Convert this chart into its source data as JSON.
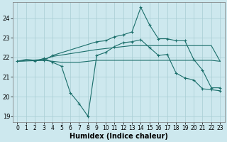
{
  "xlabel": "Humidex (Indice chaleur)",
  "background_color": "#cde8ee",
  "grid_color": "#a8cdd4",
  "line_color": "#1a6e6a",
  "xlim": [
    -0.5,
    23.5
  ],
  "ylim": [
    18.7,
    24.8
  ],
  "yticks": [
    19,
    20,
    21,
    22,
    23,
    24
  ],
  "xticks": [
    0,
    1,
    2,
    3,
    4,
    5,
    6,
    7,
    8,
    9,
    10,
    11,
    12,
    13,
    14,
    15,
    16,
    17,
    18,
    19,
    20,
    21,
    22,
    23
  ],
  "line1_x": [
    0,
    1,
    2,
    3,
    4,
    5,
    6,
    7,
    8,
    9,
    10,
    11,
    12,
    13,
    14,
    15,
    16,
    17,
    18,
    19,
    20,
    21,
    22,
    23
  ],
  "line1_y": [
    21.8,
    21.9,
    21.85,
    21.85,
    21.8,
    21.75,
    21.75,
    21.75,
    21.8,
    21.85,
    21.85,
    21.85,
    21.85,
    21.85,
    21.85,
    21.85,
    21.85,
    21.85,
    21.85,
    21.85,
    21.85,
    21.85,
    21.85,
    21.8
  ],
  "line2_x": [
    2,
    3,
    4,
    5,
    6,
    7,
    8,
    9,
    10,
    11,
    12,
    13,
    14,
    15,
    16,
    17,
    18,
    19,
    20,
    21,
    22,
    23
  ],
  "line2_y": [
    21.8,
    21.95,
    21.75,
    21.55,
    20.2,
    19.65,
    19.0,
    22.1,
    22.25,
    22.55,
    22.75,
    22.8,
    22.9,
    22.5,
    22.1,
    22.15,
    21.2,
    20.95,
    20.85,
    20.4,
    20.35,
    20.3
  ],
  "line3_x": [
    0,
    3,
    4,
    9,
    10,
    11,
    12,
    13,
    14,
    15,
    16,
    17,
    18,
    19,
    20,
    21,
    22,
    23
  ],
  "line3_y": [
    21.8,
    21.85,
    22.1,
    22.8,
    22.85,
    23.05,
    23.15,
    23.3,
    24.55,
    23.65,
    22.95,
    22.95,
    22.85,
    22.85,
    21.9,
    21.35,
    20.45,
    20.45
  ],
  "line4_x": [
    0,
    3,
    4,
    9,
    10,
    11,
    12,
    13,
    14,
    15,
    16,
    17,
    18,
    19,
    20,
    21,
    22,
    23
  ],
  "line4_y": [
    21.8,
    21.9,
    22.05,
    22.4,
    22.45,
    22.5,
    22.55,
    22.6,
    22.6,
    22.6,
    22.6,
    22.6,
    22.6,
    22.6,
    22.6,
    22.6,
    22.6,
    21.8
  ]
}
